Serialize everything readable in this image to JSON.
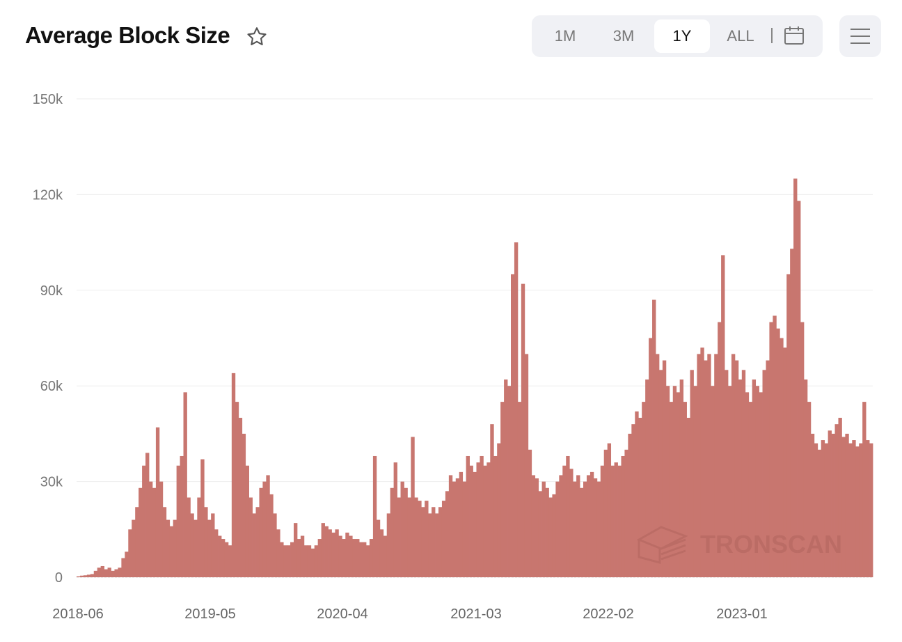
{
  "header": {
    "title": "Average Block Size",
    "star_icon": "star-outline-icon"
  },
  "range_selector": {
    "options": [
      "1M",
      "3M",
      "1Y",
      "ALL"
    ],
    "selected": "1Y",
    "calendar_icon": "calendar-icon"
  },
  "menu": {
    "icon": "hamburger-menu-icon"
  },
  "watermark": "TRONSCAN",
  "chart_data": {
    "type": "bar",
    "title": "Average Block Size",
    "xlabel": "",
    "ylabel": "",
    "ylim": [
      0,
      150000
    ],
    "yticks": [
      0,
      30000,
      60000,
      90000,
      120000,
      150000
    ],
    "ytick_labels": [
      "0",
      "30k",
      "60k",
      "90k",
      "120k",
      "150k"
    ],
    "xtick_labels": [
      "2018-06",
      "2019-05",
      "2020-04",
      "2021-03",
      "2022-02",
      "2023-01"
    ],
    "x_range": [
      "2018-06",
      "2023-12"
    ],
    "grid": true,
    "color": "#c8766f",
    "unit": "k",
    "values": [
      0.3,
      0.5,
      0.6,
      0.8,
      1,
      2,
      3,
      3.5,
      2.5,
      3,
      2,
      2.5,
      3,
      6,
      8,
      15,
      18,
      22,
      28,
      35,
      39,
      30,
      28,
      47,
      30,
      22,
      18,
      16,
      18,
      35,
      38,
      58,
      25,
      20,
      18,
      25,
      37,
      22,
      18,
      20,
      15,
      13,
      12,
      11,
      10,
      64,
      55,
      50,
      45,
      35,
      25,
      20,
      22,
      28,
      30,
      32,
      26,
      20,
      15,
      11,
      10,
      10,
      11,
      17,
      12,
      13,
      10,
      10,
      9,
      10,
      12,
      17,
      16,
      15,
      14,
      15,
      13,
      12,
      14,
      13,
      12,
      12,
      11,
      11,
      10,
      12,
      38,
      18,
      15,
      13,
      20,
      28,
      36,
      25,
      30,
      28,
      25,
      44,
      25,
      24,
      22,
      24,
      20,
      22,
      20,
      22,
      24,
      27,
      32,
      30,
      31,
      33,
      30,
      38,
      35,
      33,
      36,
      38,
      35,
      36,
      48,
      38,
      42,
      55,
      62,
      60,
      95,
      105,
      55,
      92,
      70,
      40,
      32,
      31,
      27,
      30,
      28,
      25,
      26,
      30,
      32,
      35,
      38,
      34,
      30,
      32,
      28,
      30,
      32,
      33,
      31,
      30,
      35,
      40,
      42,
      35,
      36,
      35,
      38,
      40,
      45,
      48,
      52,
      50,
      55,
      62,
      75,
      87,
      70,
      65,
      68,
      60,
      55,
      60,
      58,
      62,
      55,
      50,
      65,
      60,
      70,
      72,
      68,
      70,
      60,
      70,
      80,
      101,
      65,
      60,
      70,
      68,
      62,
      65,
      58,
      55,
      62,
      60,
      58,
      65,
      68,
      80,
      82,
      78,
      75,
      72,
      95,
      103,
      125,
      118,
      80,
      62,
      55,
      45,
      42,
      40,
      43,
      42,
      46,
      45,
      48,
      50,
      44,
      45,
      42,
      43,
      41,
      42,
      55,
      43,
      42
    ]
  }
}
